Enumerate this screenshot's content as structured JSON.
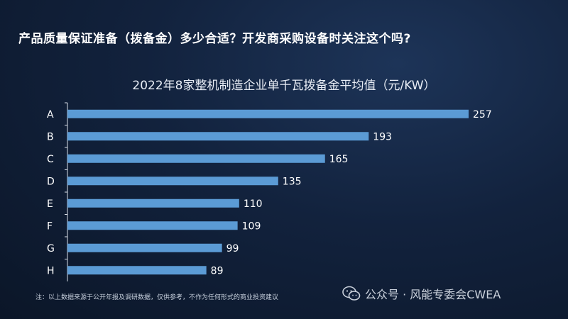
{
  "slide": {
    "headline": "产品质量保证准备（拨备金）多少合适？开发商采购设备时关注这个吗?",
    "footnote": "注：以上数据来源于公开年报及调研数据，仅供参考，不作为任何形式的商业投资建议",
    "watermark": "公众号 · 风能专委会CWEA",
    "watermark_icon": "wechat-icon"
  },
  "colors": {
    "bar": "#5b9bd5",
    "axis": "#d9dee7",
    "label": "#ffffff"
  },
  "chart_data": {
    "type": "bar",
    "orientation": "horizontal",
    "title": "2022年8家整机制造企业单千瓦拨备金平均值（元/KW）",
    "xlabel": "",
    "ylabel": "",
    "categories": [
      "A",
      "B",
      "C",
      "D",
      "E",
      "F",
      "G",
      "H"
    ],
    "values": [
      257,
      193,
      165,
      135,
      110,
      109,
      99,
      89
    ],
    "data_labels": [
      "257",
      "193",
      "165",
      "135",
      "110",
      "109",
      "99",
      "89"
    ],
    "xlim": [
      0,
      257
    ],
    "grid": false,
    "legend": "none"
  }
}
